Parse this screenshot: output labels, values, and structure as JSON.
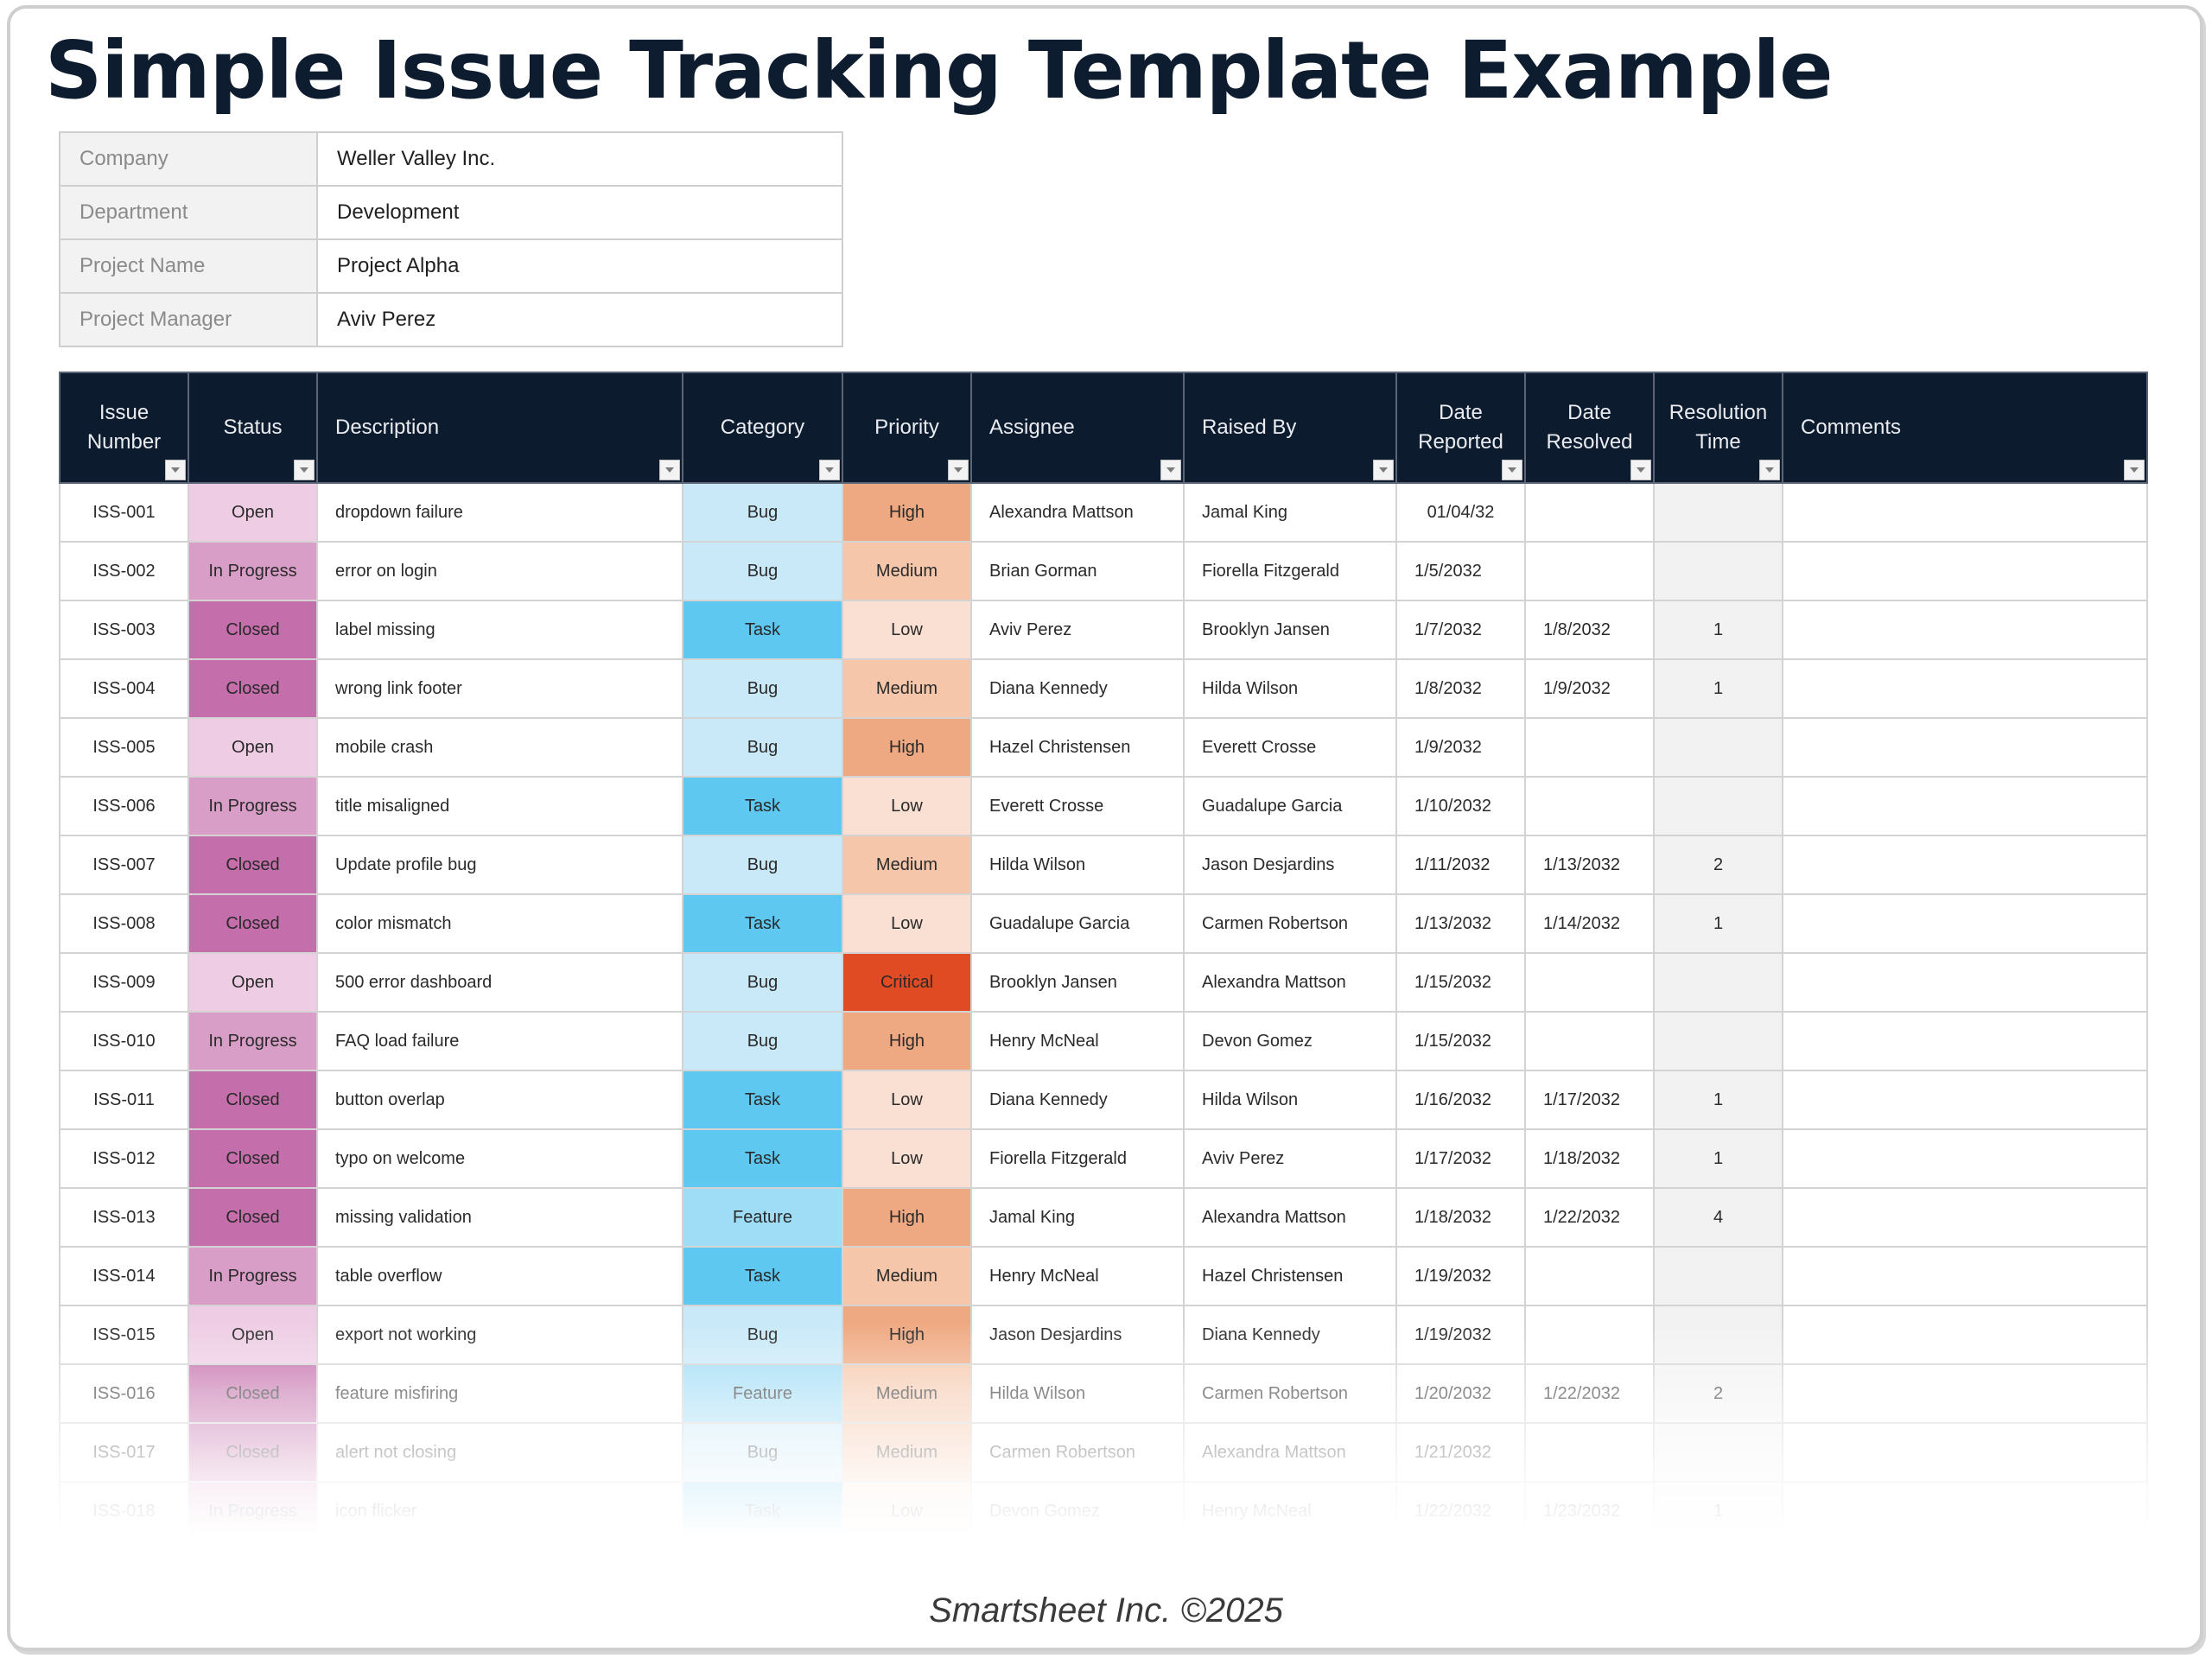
{
  "title": "Simple Issue Tracking Template Example",
  "info": [
    {
      "label": "Company",
      "value": "Weller Valley Inc."
    },
    {
      "label": "Department",
      "value": "Development"
    },
    {
      "label": "Project Name",
      "value": "Project Alpha"
    },
    {
      "label": "Project Manager",
      "value": "Aviv Perez"
    }
  ],
  "columns": [
    {
      "label": "Issue Number",
      "filter_icon": "dropdown-arrow"
    },
    {
      "label": "Status",
      "filter_icon": "dropdown-arrow"
    },
    {
      "label": "Description",
      "filter_icon": "dropdown-arrow"
    },
    {
      "label": "Category",
      "filter_icon": "dropdown-arrow"
    },
    {
      "label": "Priority",
      "filter_icon": "dropdown-arrow"
    },
    {
      "label": "Assignee",
      "filter_icon": "dropdown-arrow"
    },
    {
      "label": "Raised By",
      "filter_icon": "dropdown-arrow"
    },
    {
      "label": "Date Reported",
      "filter_icon": "dropdown-arrow"
    },
    {
      "label": "Date Resolved",
      "filter_icon": "dropdown-arrow"
    },
    {
      "label": "Resolution Time",
      "filter_icon": "dropdown-arrow"
    },
    {
      "label": "Comments",
      "filter_icon": "dropdown-arrow"
    }
  ],
  "colors": {
    "header_bg": "#0d1b2e",
    "status": {
      "Open": "#eecde4",
      "In Progress": "#d99ec8",
      "Closed": "#c46fab"
    },
    "category": {
      "Bug": "#c9e9f8",
      "Task": "#5fc8f0",
      "Feature": "#9fdcf5"
    },
    "priority": {
      "Critical": "#e04b24",
      "High": "#efa982",
      "Medium": "#f5c6aa",
      "Low": "#fae0d3"
    },
    "resolution_bg": "#f2f2f2"
  },
  "rows": [
    {
      "id": "ISS-001",
      "status": "Open",
      "description": "dropdown failure",
      "category": "Bug",
      "priority": "High",
      "assignee": "Alexandra Mattson",
      "raised_by": "Jamal King",
      "date_reported": "01/04/32",
      "date_resolved": "",
      "resolution_time": "",
      "comments": ""
    },
    {
      "id": "ISS-002",
      "status": "In Progress",
      "description": "error on login",
      "category": "Bug",
      "priority": "Medium",
      "assignee": "Brian Gorman",
      "raised_by": "Fiorella Fitzgerald",
      "date_reported": "1/5/2032",
      "date_resolved": "",
      "resolution_time": "",
      "comments": ""
    },
    {
      "id": "ISS-003",
      "status": "Closed",
      "description": "label missing",
      "category": "Task",
      "priority": "Low",
      "assignee": "Aviv Perez",
      "raised_by": "Brooklyn Jansen",
      "date_reported": "1/7/2032",
      "date_resolved": "1/8/2032",
      "resolution_time": "1",
      "comments": ""
    },
    {
      "id": "ISS-004",
      "status": "Closed",
      "description": "wrong link footer",
      "category": "Bug",
      "priority": "Medium",
      "assignee": "Diana Kennedy",
      "raised_by": "Hilda Wilson",
      "date_reported": "1/8/2032",
      "date_resolved": "1/9/2032",
      "resolution_time": "1",
      "comments": ""
    },
    {
      "id": "ISS-005",
      "status": "Open",
      "description": "mobile crash",
      "category": "Bug",
      "priority": "High",
      "assignee": "Hazel Christensen",
      "raised_by": "Everett Crosse",
      "date_reported": "1/9/2032",
      "date_resolved": "",
      "resolution_time": "",
      "comments": ""
    },
    {
      "id": "ISS-006",
      "status": "In Progress",
      "description": "title misaligned",
      "category": "Task",
      "priority": "Low",
      "assignee": "Everett Crosse",
      "raised_by": "Guadalupe Garcia",
      "date_reported": "1/10/2032",
      "date_resolved": "",
      "resolution_time": "",
      "comments": ""
    },
    {
      "id": "ISS-007",
      "status": "Closed",
      "description": "Update profile bug",
      "category": "Bug",
      "priority": "Medium",
      "assignee": "Hilda Wilson",
      "raised_by": "Jason Desjardins",
      "date_reported": "1/11/2032",
      "date_resolved": "1/13/2032",
      "resolution_time": "2",
      "comments": ""
    },
    {
      "id": "ISS-008",
      "status": "Closed",
      "description": "color mismatch",
      "category": "Task",
      "priority": "Low",
      "assignee": "Guadalupe Garcia",
      "raised_by": "Carmen Robertson",
      "date_reported": "1/13/2032",
      "date_resolved": "1/14/2032",
      "resolution_time": "1",
      "comments": ""
    },
    {
      "id": "ISS-009",
      "status": "Open",
      "description": "500 error dashboard",
      "category": "Bug",
      "priority": "Critical",
      "assignee": "Brooklyn Jansen",
      "raised_by": "Alexandra Mattson",
      "date_reported": "1/15/2032",
      "date_resolved": "",
      "resolution_time": "",
      "comments": ""
    },
    {
      "id": "ISS-010",
      "status": "In Progress",
      "description": "FAQ load failure",
      "category": "Bug",
      "priority": "High",
      "assignee": "Henry McNeal",
      "raised_by": "Devon Gomez",
      "date_reported": "1/15/2032",
      "date_resolved": "",
      "resolution_time": "",
      "comments": ""
    },
    {
      "id": "ISS-011",
      "status": "Closed",
      "description": "button overlap",
      "category": "Task",
      "priority": "Low",
      "assignee": "Diana Kennedy",
      "raised_by": "Hilda Wilson",
      "date_reported": "1/16/2032",
      "date_resolved": "1/17/2032",
      "resolution_time": "1",
      "comments": ""
    },
    {
      "id": "ISS-012",
      "status": "Closed",
      "description": "typo on welcome",
      "category": "Task",
      "priority": "Low",
      "assignee": "Fiorella Fitzgerald",
      "raised_by": "Aviv Perez",
      "date_reported": "1/17/2032",
      "date_resolved": "1/18/2032",
      "resolution_time": "1",
      "comments": ""
    },
    {
      "id": "ISS-013",
      "status": "Closed",
      "description": "missing validation",
      "category": "Feature",
      "priority": "High",
      "assignee": "Jamal King",
      "raised_by": "Alexandra Mattson",
      "date_reported": "1/18/2032",
      "date_resolved": "1/22/2032",
      "resolution_time": "4",
      "comments": ""
    },
    {
      "id": "ISS-014",
      "status": "In Progress",
      "description": "table overflow",
      "category": "Task",
      "priority": "Medium",
      "assignee": "Henry McNeal",
      "raised_by": "Hazel Christensen",
      "date_reported": "1/19/2032",
      "date_resolved": "",
      "resolution_time": "",
      "comments": ""
    },
    {
      "id": "ISS-015",
      "status": "Open",
      "description": "export not working",
      "category": "Bug",
      "priority": "High",
      "assignee": "Jason Desjardins",
      "raised_by": "Diana Kennedy",
      "date_reported": "1/19/2032",
      "date_resolved": "",
      "resolution_time": "",
      "comments": ""
    },
    {
      "id": "ISS-016",
      "status": "Closed",
      "description": "feature misfiring",
      "category": "Feature",
      "priority": "Medium",
      "assignee": "Hilda Wilson",
      "raised_by": "Carmen Robertson",
      "date_reported": "1/20/2032",
      "date_resolved": "1/22/2032",
      "resolution_time": "2",
      "comments": ""
    },
    {
      "id": "ISS-017",
      "status": "Closed",
      "description": "alert not closing",
      "category": "Bug",
      "priority": "Medium",
      "assignee": "Carmen Robertson",
      "raised_by": "Alexandra Mattson",
      "date_reported": "1/21/2032",
      "date_resolved": "",
      "resolution_time": "",
      "comments": ""
    },
    {
      "id": "ISS-018",
      "status": "In Progress",
      "description": "icon flicker",
      "category": "Task",
      "priority": "Low",
      "assignee": "Devon Gomez",
      "raised_by": "Henry McNeal",
      "date_reported": "1/22/2032",
      "date_resolved": "1/23/2032",
      "resolution_time": "1",
      "comments": ""
    }
  ],
  "footer": "Smartsheet Inc. ©2025"
}
